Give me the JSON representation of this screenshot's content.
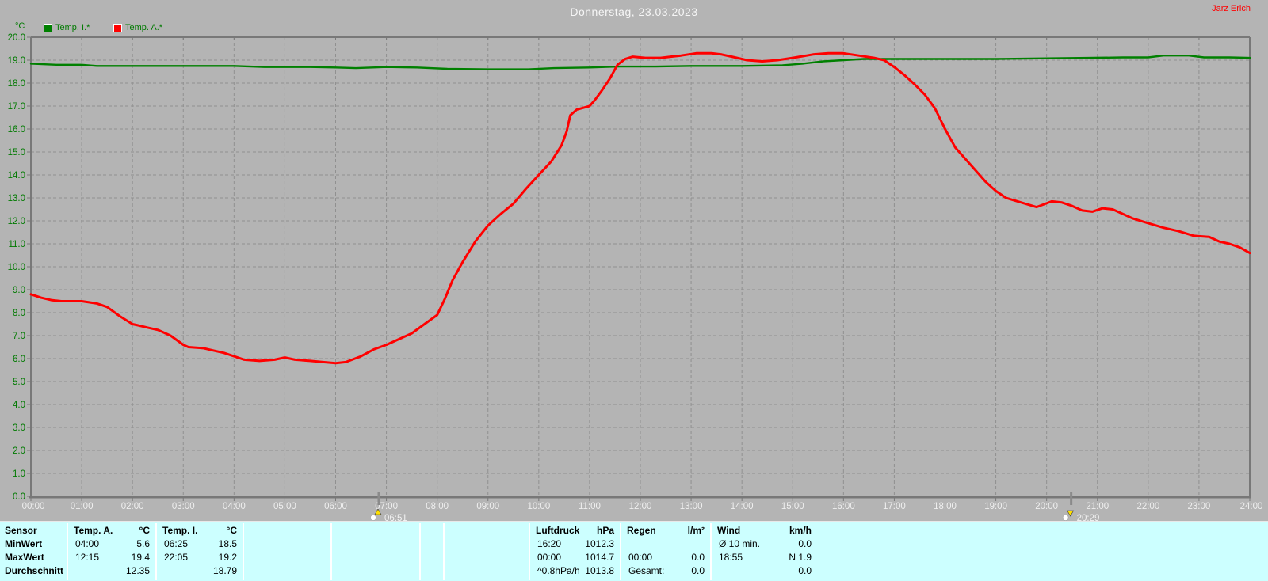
{
  "header": {
    "title": "Donnerstag, 23.03.2023",
    "user": "Jarz Erich"
  },
  "legend": {
    "unit_label": "°C",
    "items": [
      {
        "label": "Temp. I.*",
        "color": "#008000"
      },
      {
        "label": "Temp. A.*",
        "color": "#ff0000"
      }
    ]
  },
  "chart_data": {
    "type": "line",
    "title": "Donnerstag, 23.03.2023",
    "ylabel": "°C",
    "xlabel": "",
    "ylim": [
      0,
      20
    ],
    "xlim_hours": [
      0,
      24
    ],
    "grid": true,
    "legend_position": "top-left",
    "y_ticks": [
      "0.0",
      "1.0",
      "2.0",
      "3.0",
      "4.0",
      "5.0",
      "6.0",
      "7.0",
      "8.0",
      "9.0",
      "10.0",
      "11.0",
      "12.0",
      "13.0",
      "14.0",
      "15.0",
      "16.0",
      "17.0",
      "18.0",
      "19.0",
      "20.0"
    ],
    "x_ticks": [
      "00:00",
      "01:00",
      "02:00",
      "03:00",
      "04:00",
      "05:00",
      "06:00",
      "07:00",
      "08:00",
      "09:00",
      "10:00",
      "11:00",
      "12:00",
      "13:00",
      "14:00",
      "15:00",
      "16:00",
      "17:00",
      "18:00",
      "19:00",
      "20:00",
      "21:00",
      "22:00",
      "23:00",
      "24:00"
    ],
    "colors": {
      "grid": "#909090",
      "border": "#787878",
      "x_label": "#efefef",
      "y_label": "#007a00"
    },
    "sun_markers": [
      {
        "type": "sunrise",
        "label": "06:51",
        "hour": 6.85
      },
      {
        "type": "sunset",
        "label": "20:29",
        "hour": 20.4833
      }
    ],
    "series": [
      {
        "name": "Temp. I.*",
        "color": "#008000",
        "width": 2.4,
        "points": [
          [
            0,
            18.85
          ],
          [
            0.5,
            18.8
          ],
          [
            1,
            18.8
          ],
          [
            1.3,
            18.75
          ],
          [
            2,
            18.75
          ],
          [
            3,
            18.75
          ],
          [
            4,
            18.75
          ],
          [
            4.6,
            18.7
          ],
          [
            5.5,
            18.7
          ],
          [
            6,
            18.68
          ],
          [
            6.4,
            18.65
          ],
          [
            7,
            18.7
          ],
          [
            7.6,
            18.68
          ],
          [
            8.2,
            18.62
          ],
          [
            9,
            18.6
          ],
          [
            9.8,
            18.6
          ],
          [
            10.3,
            18.65
          ],
          [
            11,
            18.68
          ],
          [
            11.6,
            18.72
          ],
          [
            12.3,
            18.72
          ],
          [
            13,
            18.75
          ],
          [
            14,
            18.75
          ],
          [
            14.8,
            18.78
          ],
          [
            15.2,
            18.85
          ],
          [
            15.6,
            18.95
          ],
          [
            16,
            19.0
          ],
          [
            16.4,
            19.05
          ],
          [
            17,
            19.05
          ],
          [
            18,
            19.05
          ],
          [
            19,
            19.05
          ],
          [
            20,
            19.08
          ],
          [
            20.8,
            19.1
          ],
          [
            21.5,
            19.12
          ],
          [
            22,
            19.12
          ],
          [
            22.3,
            19.2
          ],
          [
            22.8,
            19.2
          ],
          [
            23.1,
            19.12
          ],
          [
            23.6,
            19.12
          ],
          [
            24,
            19.1
          ]
        ]
      },
      {
        "name": "Temp. A.*",
        "color": "#ff0000",
        "width": 3,
        "points": [
          [
            0,
            8.8
          ],
          [
            0.2,
            8.65
          ],
          [
            0.4,
            8.55
          ],
          [
            0.6,
            8.5
          ],
          [
            1,
            8.5
          ],
          [
            1.3,
            8.4
          ],
          [
            1.5,
            8.25
          ],
          [
            1.75,
            7.85
          ],
          [
            2,
            7.5
          ],
          [
            2.1,
            7.45
          ],
          [
            2.3,
            7.35
          ],
          [
            2.5,
            7.25
          ],
          [
            2.75,
            7.0
          ],
          [
            3,
            6.6
          ],
          [
            3.1,
            6.5
          ],
          [
            3.4,
            6.45
          ],
          [
            3.6,
            6.35
          ],
          [
            3.8,
            6.25
          ],
          [
            4,
            6.1
          ],
          [
            4.2,
            5.95
          ],
          [
            4.5,
            5.9
          ],
          [
            4.8,
            5.95
          ],
          [
            5,
            6.05
          ],
          [
            5.2,
            5.95
          ],
          [
            5.5,
            5.9
          ],
          [
            5.75,
            5.85
          ],
          [
            6,
            5.8
          ],
          [
            6.2,
            5.85
          ],
          [
            6.5,
            6.1
          ],
          [
            6.75,
            6.4
          ],
          [
            7,
            6.6
          ],
          [
            7.25,
            6.85
          ],
          [
            7.5,
            7.1
          ],
          [
            7.75,
            7.5
          ],
          [
            8,
            7.9
          ],
          [
            8.15,
            8.6
          ],
          [
            8.3,
            9.4
          ],
          [
            8.5,
            10.2
          ],
          [
            8.75,
            11.1
          ],
          [
            9,
            11.8
          ],
          [
            9.25,
            12.3
          ],
          [
            9.5,
            12.75
          ],
          [
            9.75,
            13.4
          ],
          [
            10,
            14.0
          ],
          [
            10.25,
            14.6
          ],
          [
            10.45,
            15.3
          ],
          [
            10.55,
            15.9
          ],
          [
            10.62,
            16.6
          ],
          [
            10.75,
            16.85
          ],
          [
            11,
            17.0
          ],
          [
            11.1,
            17.25
          ],
          [
            11.25,
            17.7
          ],
          [
            11.4,
            18.2
          ],
          [
            11.55,
            18.8
          ],
          [
            11.7,
            19.05
          ],
          [
            11.85,
            19.15
          ],
          [
            12.1,
            19.1
          ],
          [
            12.4,
            19.1
          ],
          [
            12.6,
            19.15
          ],
          [
            12.8,
            19.2
          ],
          [
            13.1,
            19.3
          ],
          [
            13.4,
            19.3
          ],
          [
            13.6,
            19.25
          ],
          [
            13.8,
            19.15
          ],
          [
            14.1,
            19.0
          ],
          [
            14.4,
            18.95
          ],
          [
            14.7,
            19.0
          ],
          [
            15,
            19.1
          ],
          [
            15.4,
            19.25
          ],
          [
            15.7,
            19.3
          ],
          [
            16,
            19.3
          ],
          [
            16.3,
            19.2
          ],
          [
            16.6,
            19.1
          ],
          [
            16.8,
            19.0
          ],
          [
            17,
            18.7
          ],
          [
            17.2,
            18.35
          ],
          [
            17.4,
            17.95
          ],
          [
            17.6,
            17.5
          ],
          [
            17.8,
            16.9
          ],
          [
            18,
            16.0
          ],
          [
            18.2,
            15.2
          ],
          [
            18.4,
            14.7
          ],
          [
            18.6,
            14.2
          ],
          [
            18.8,
            13.7
          ],
          [
            19,
            13.3
          ],
          [
            19.2,
            13.0
          ],
          [
            19.5,
            12.8
          ],
          [
            19.8,
            12.6
          ],
          [
            20.1,
            12.85
          ],
          [
            20.3,
            12.8
          ],
          [
            20.5,
            12.65
          ],
          [
            20.7,
            12.45
          ],
          [
            20.9,
            12.4
          ],
          [
            21.1,
            12.55
          ],
          [
            21.3,
            12.5
          ],
          [
            21.5,
            12.3
          ],
          [
            21.7,
            12.1
          ],
          [
            22,
            11.9
          ],
          [
            22.3,
            11.7
          ],
          [
            22.6,
            11.55
          ],
          [
            22.9,
            11.35
          ],
          [
            23.2,
            11.3
          ],
          [
            23.4,
            11.1
          ],
          [
            23.6,
            11.0
          ],
          [
            23.8,
            10.85
          ],
          [
            24,
            10.6
          ]
        ]
      }
    ]
  },
  "table": {
    "row_labels": [
      "Sensor",
      "MinWert",
      "MaxWert",
      "Durchschnitt"
    ],
    "columns": [
      {
        "header": "Temp. A.",
        "unit": "°C",
        "rows": [
          [
            "04:00",
            "5.6"
          ],
          [
            "12:15",
            "19.4"
          ],
          [
            "",
            "12.35"
          ]
        ]
      },
      {
        "header": "Temp. I.",
        "unit": "°C",
        "rows": [
          [
            "06:25",
            "18.5"
          ],
          [
            "22:05",
            "19.2"
          ],
          [
            "",
            "18.79"
          ]
        ]
      },
      {
        "header": "Luftdruck",
        "unit": "hPa",
        "rows": [
          [
            "16:20",
            "1012.3"
          ],
          [
            "00:00",
            "1014.7"
          ],
          [
            "^0.8hPa/h",
            "1013.8"
          ]
        ]
      },
      {
        "header": "Regen",
        "unit": "l/m²",
        "rows": [
          [
            "",
            ""
          ],
          [
            "00:00",
            "0.0"
          ],
          [
            "Gesamt:",
            "0.0"
          ]
        ]
      },
      {
        "header": "Wind",
        "unit": "km/h",
        "rows": [
          [
            "Ø 10 min.",
            "0.0"
          ],
          [
            "18:55",
            "N 1.9"
          ],
          [
            "",
            "0.0"
          ]
        ]
      }
    ]
  }
}
